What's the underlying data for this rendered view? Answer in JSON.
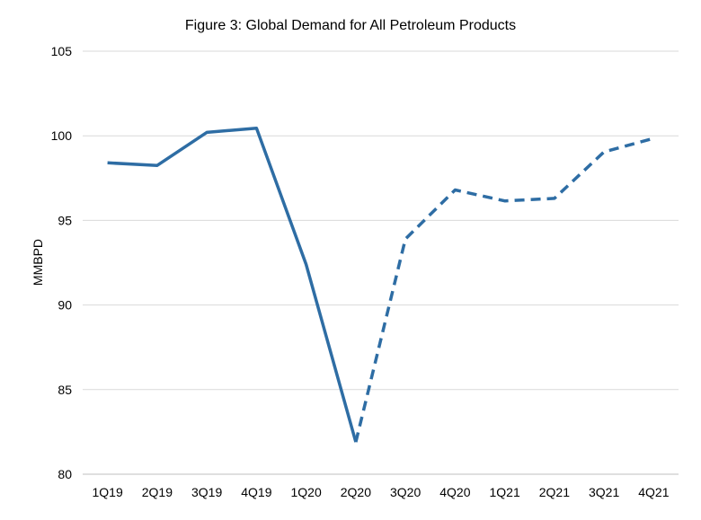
{
  "chart_data": {
    "type": "line",
    "title": "Figure 3: Global Demand for All Petroleum Products",
    "xlabel": "",
    "ylabel": "MMBPD",
    "categories": [
      "1Q19",
      "2Q19",
      "3Q19",
      "4Q19",
      "1Q20",
      "2Q20",
      "3Q20",
      "4Q20",
      "1Q21",
      "2Q21",
      "3Q21",
      "4Q21"
    ],
    "ylim": [
      80,
      105
    ],
    "yticks": [
      80,
      85,
      90,
      95,
      100,
      105
    ],
    "grid": true,
    "legend": "none",
    "series": [
      {
        "values": [
          98.4,
          98.25,
          100.2,
          100.45,
          92.4,
          81.9,
          93.9,
          96.8,
          96.15,
          96.3,
          99.05,
          99.85
        ],
        "solid_until_index": 5,
        "color": "#2e6da4"
      }
    ]
  }
}
